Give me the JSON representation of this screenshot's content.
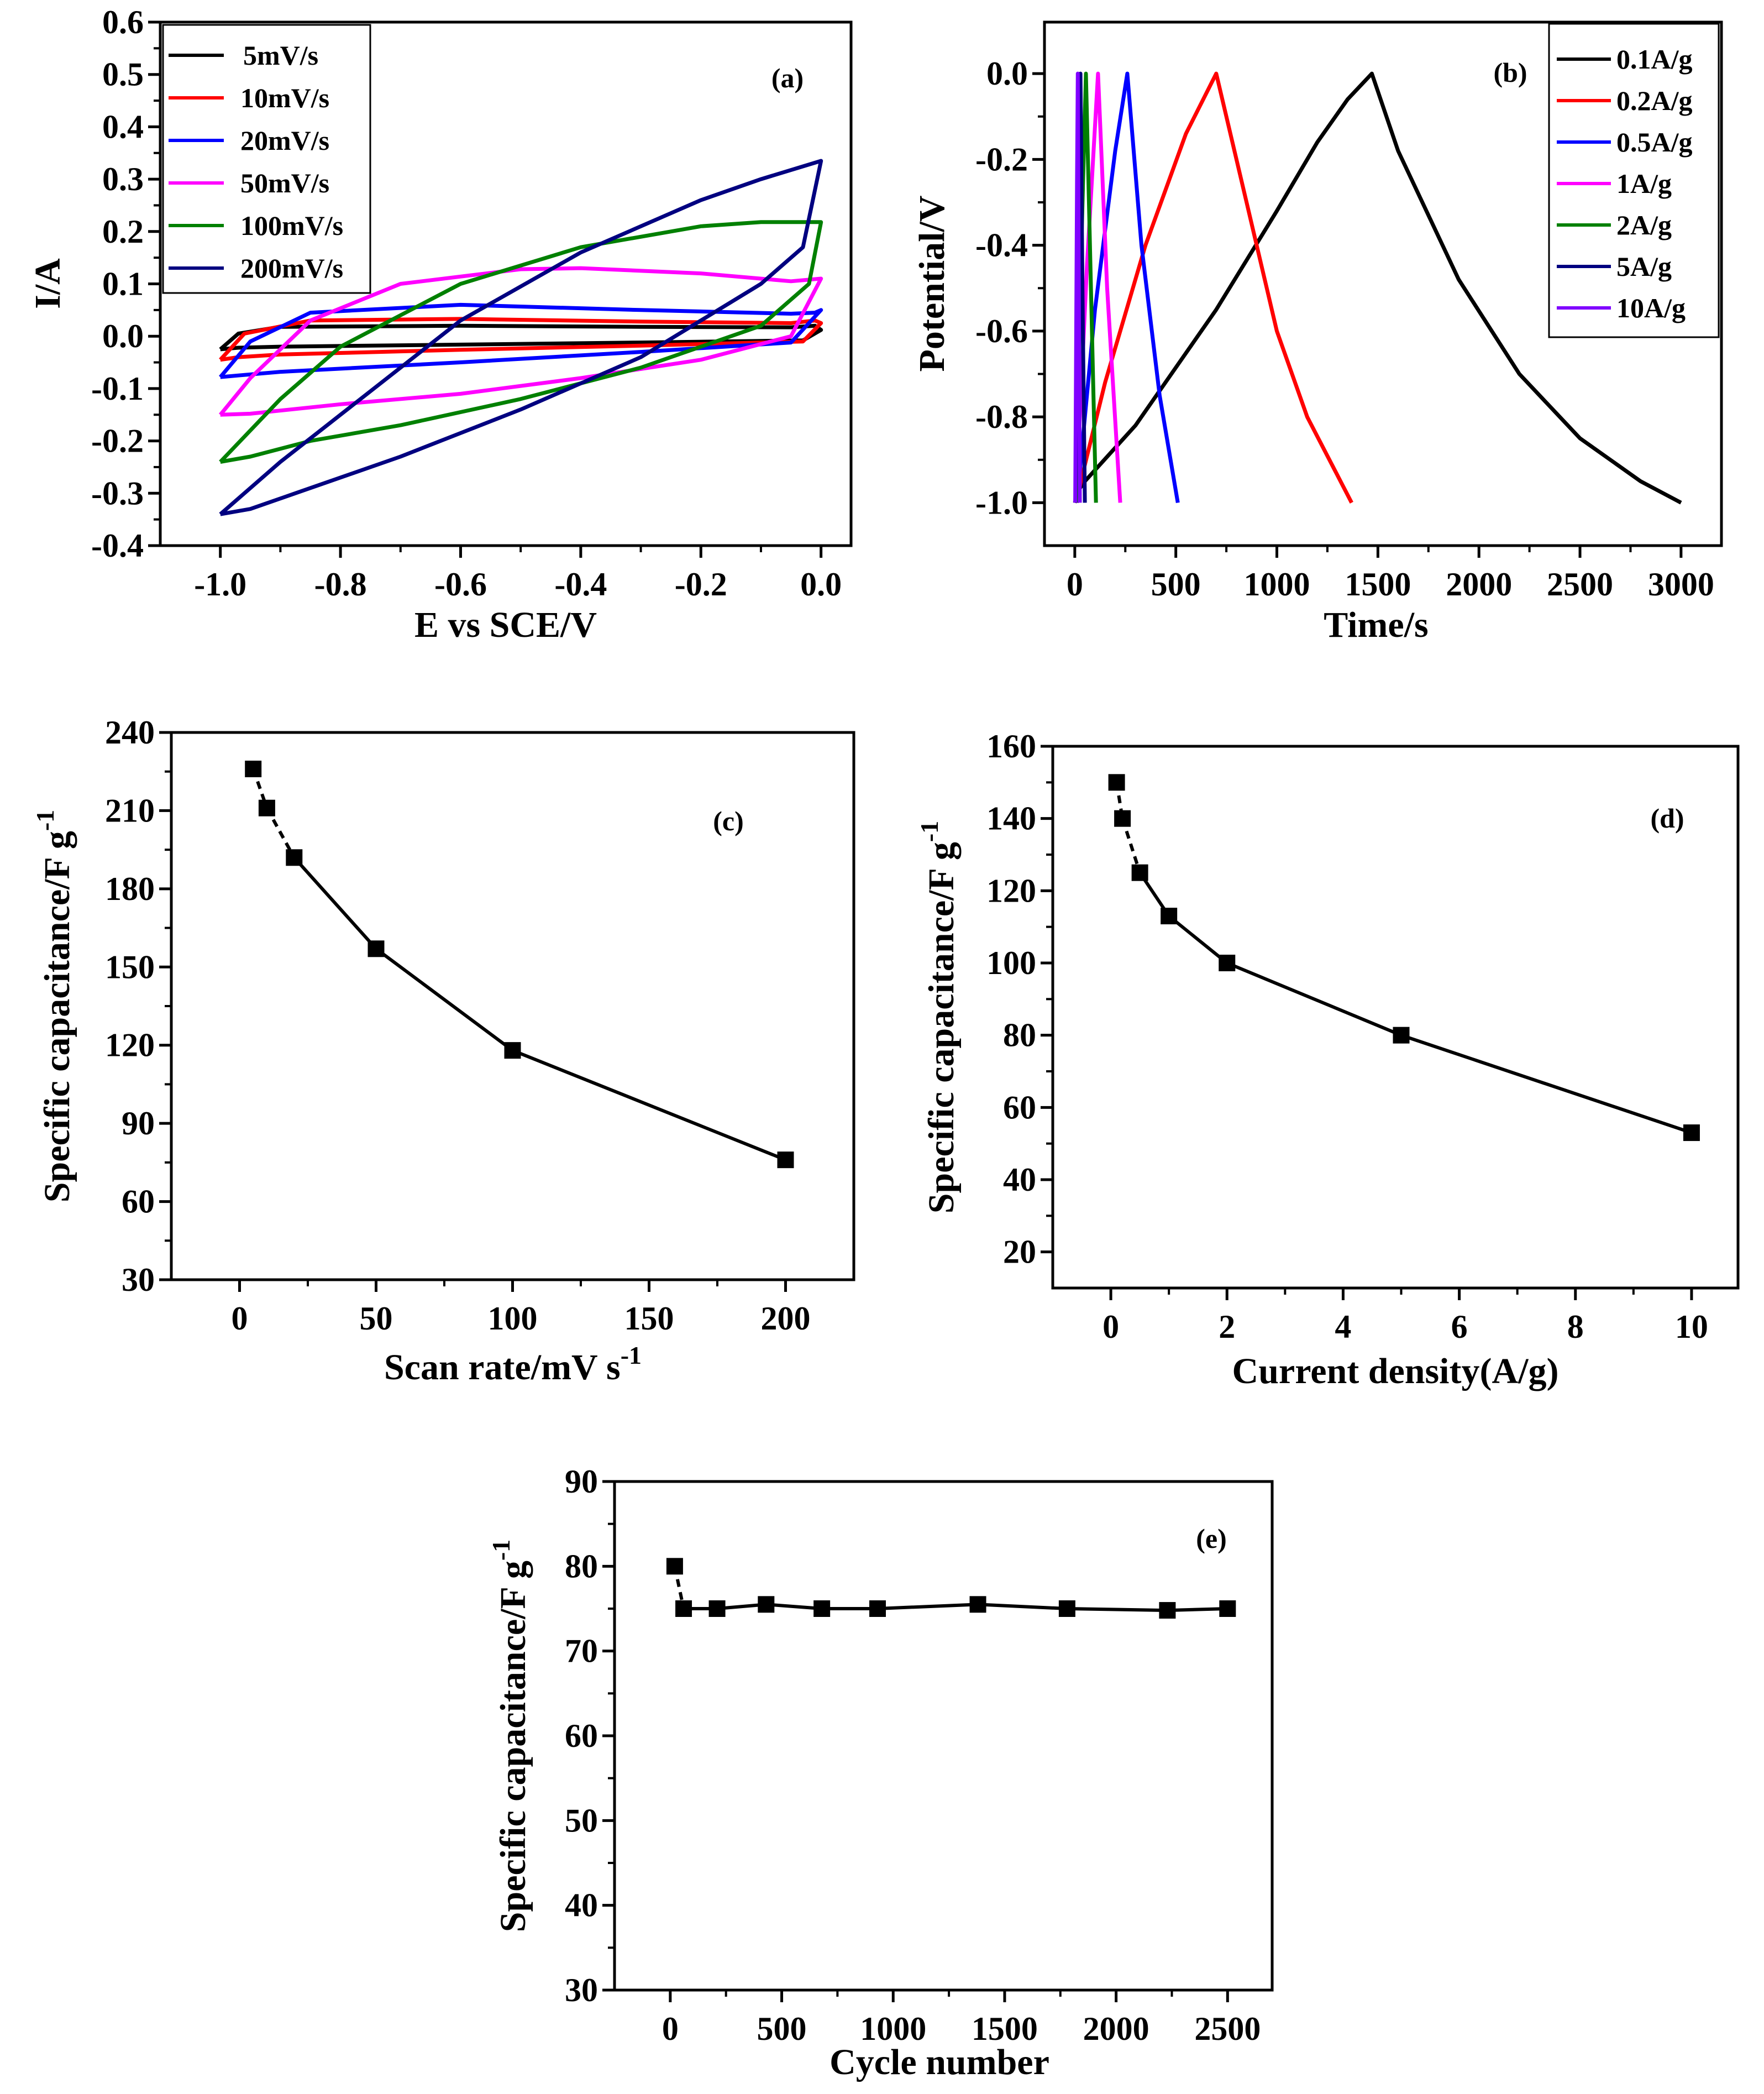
{
  "colors": {
    "black": "#000000",
    "red": "#ff0000",
    "blue": "#0000ff",
    "magenta": "#ff00ff",
    "green": "#008000",
    "navy": "#000080",
    "violet": "#8000ff"
  },
  "chart_data": [
    {
      "id": "a",
      "type": "line",
      "panel_label": "(a)",
      "xlabel": "E vs SCE/V",
      "ylabel": "I/A",
      "xlim": [
        -1.1,
        0.05
      ],
      "ylim": [
        -0.4,
        0.6
      ],
      "xticks": [
        -1.0,
        -0.8,
        -0.6,
        -0.4,
        -0.2,
        0.0
      ],
      "xtick_labels": [
        "-1.0",
        "-0.8",
        "-0.6",
        "-0.4",
        "-0.2",
        "0.0"
      ],
      "yticks": [
        -0.4,
        -0.3,
        -0.2,
        -0.1,
        0.0,
        0.1,
        0.2,
        0.3,
        0.4,
        0.5,
        0.6
      ],
      "ytick_labels": [
        "-0.4",
        "-0.3",
        "-0.2",
        "-0.1",
        "0.0",
        "0.1",
        "0.2",
        "0.3",
        "0.4",
        "0.5",
        "0.6"
      ],
      "legend_position": "top-left",
      "series": [
        {
          "name": "5mV/s",
          "color": "#000000",
          "x": [
            -1.0,
            -0.97,
            -0.9,
            -0.6,
            -0.3,
            -0.05,
            -0.01,
            0.0,
            -0.03,
            -0.3,
            -0.6,
            -0.9,
            -0.97,
            -1.0
          ],
          "y": [
            -0.025,
            0.005,
            0.018,
            0.02,
            0.018,
            0.017,
            0.02,
            0.012,
            -0.008,
            -0.012,
            -0.016,
            -0.02,
            -0.022,
            -0.025
          ]
        },
        {
          "name": "10mV/s",
          "color": "#ff0000",
          "x": [
            -1.0,
            -0.96,
            -0.85,
            -0.6,
            -0.3,
            -0.05,
            -0.01,
            0.0,
            -0.03,
            -0.3,
            -0.6,
            -0.9,
            -0.97,
            -1.0
          ],
          "y": [
            -0.045,
            0.005,
            0.03,
            0.033,
            0.028,
            0.025,
            0.03,
            0.025,
            -0.01,
            -0.018,
            -0.026,
            -0.035,
            -0.04,
            -0.045
          ]
        },
        {
          "name": "20mV/s",
          "color": "#0000ff",
          "x": [
            -1.0,
            -0.95,
            -0.85,
            -0.6,
            -0.3,
            -0.05,
            -0.01,
            0.0,
            -0.05,
            -0.3,
            -0.6,
            -0.9,
            -0.97,
            -1.0
          ],
          "y": [
            -0.078,
            -0.01,
            0.045,
            0.06,
            0.05,
            0.043,
            0.045,
            0.05,
            -0.012,
            -0.03,
            -0.05,
            -0.068,
            -0.075,
            -0.078
          ]
        },
        {
          "name": "50mV/s",
          "color": "#ff00ff",
          "x": [
            -1.0,
            -0.95,
            -0.85,
            -0.7,
            -0.5,
            -0.4,
            -0.2,
            -0.05,
            0.0,
            -0.05,
            -0.2,
            -0.4,
            -0.6,
            -0.8,
            -0.95,
            -1.0
          ],
          "y": [
            -0.15,
            -0.08,
            0.03,
            0.1,
            0.128,
            0.13,
            0.12,
            0.105,
            0.11,
            0.0,
            -0.045,
            -0.08,
            -0.11,
            -0.13,
            -0.148,
            -0.15
          ]
        },
        {
          "name": "100mV/s",
          "color": "#008000",
          "x": [
            -1.0,
            -0.9,
            -0.8,
            -0.6,
            -0.4,
            -0.2,
            -0.1,
            0.0,
            -0.02,
            -0.1,
            -0.3,
            -0.5,
            -0.7,
            -0.85,
            -0.95,
            -1.0
          ],
          "y": [
            -0.24,
            -0.12,
            -0.02,
            0.1,
            0.17,
            0.21,
            0.218,
            0.218,
            0.1,
            0.02,
            -0.06,
            -0.12,
            -0.17,
            -0.2,
            -0.23,
            -0.24
          ]
        },
        {
          "name": "200mV/s",
          "color": "#000080",
          "x": [
            -1.0,
            -0.9,
            -0.8,
            -0.6,
            -0.4,
            -0.2,
            -0.1,
            0.0,
            -0.03,
            -0.1,
            -0.3,
            -0.5,
            -0.7,
            -0.85,
            -0.95,
            -1.0
          ],
          "y": [
            -0.34,
            -0.24,
            -0.15,
            0.03,
            0.16,
            0.26,
            0.3,
            0.335,
            0.17,
            0.1,
            -0.04,
            -0.14,
            -0.23,
            -0.29,
            -0.33,
            -0.34
          ]
        }
      ]
    },
    {
      "id": "b",
      "type": "line",
      "panel_label": "(b)",
      "xlabel": "Time/s",
      "ylabel": "Potential/V",
      "xlim": [
        -150,
        3200
      ],
      "ylim": [
        -1.1,
        0.12
      ],
      "xticks": [
        0,
        500,
        1000,
        1500,
        2000,
        2500,
        3000
      ],
      "xtick_labels": [
        "0",
        "500",
        "1000",
        "1500",
        "2000",
        "2500",
        "3000"
      ],
      "yticks": [
        -1.0,
        -0.8,
        -0.6,
        -0.4,
        -0.2,
        0.0
      ],
      "ytick_labels": [
        "-1.0",
        "-0.8",
        "-0.6",
        "-0.4",
        "-0.2",
        "0.0"
      ],
      "legend_position": "top-right",
      "series": [
        {
          "name": "0.1A/g",
          "color": "#000000",
          "x": [
            0,
            20,
            50,
            300,
            700,
            1000,
            1200,
            1350,
            1470,
            1600,
            1900,
            2200,
            2500,
            2800,
            3000
          ],
          "y": [
            -1.0,
            -0.97,
            -0.95,
            -0.82,
            -0.55,
            -0.32,
            -0.16,
            -0.06,
            0.0,
            -0.18,
            -0.48,
            -0.7,
            -0.85,
            -0.95,
            -1.0
          ]
        },
        {
          "name": "0.2A/g",
          "color": "#ff0000",
          "x": [
            10,
            30,
            150,
            350,
            550,
            700,
            850,
            1000,
            1150,
            1370
          ],
          "y": [
            -1.0,
            -0.95,
            -0.72,
            -0.4,
            -0.14,
            0.0,
            -0.3,
            -0.6,
            -0.8,
            -1.0
          ]
        },
        {
          "name": "0.5A/g",
          "color": "#0000ff",
          "x": [
            10,
            20,
            100,
            200,
            260,
            330,
            420,
            510
          ],
          "y": [
            -1.0,
            -0.95,
            -0.55,
            -0.18,
            0.0,
            -0.4,
            -0.75,
            -1.0
          ]
        },
        {
          "name": "1A/g",
          "color": "#ff00ff",
          "x": [
            5,
            15,
            60,
            115,
            160,
            225
          ],
          "y": [
            -1.0,
            -0.9,
            -0.45,
            0.0,
            -0.5,
            -1.0
          ]
        },
        {
          "name": "2A/g",
          "color": "#008000",
          "x": [
            5,
            10,
            30,
            55,
            80,
            105
          ],
          "y": [
            -1.0,
            -0.9,
            -0.45,
            0.0,
            -0.5,
            -1.0
          ]
        },
        {
          "name": "5A/g",
          "color": "#000080",
          "x": [
            3,
            8,
            20,
            28,
            38,
            50
          ],
          "y": [
            -1.0,
            -0.8,
            -0.3,
            0.0,
            -0.5,
            -1.0
          ]
        },
        {
          "name": "10A/g",
          "color": "#8000ff",
          "x": [
            2,
            6,
            11,
            15,
            20,
            25
          ],
          "y": [
            -1.0,
            -0.7,
            -0.25,
            0.0,
            -0.5,
            -1.0
          ]
        }
      ]
    },
    {
      "id": "c",
      "type": "scatter",
      "panel_label": "(c)",
      "xlabel": "Scan rate/mV s",
      "xlabel_sup": "-1",
      "ylabel": "Specific capacitance/F g",
      "ylabel_sup": "-1",
      "xlim": [
        -25,
        225
      ],
      "ylim": [
        30,
        240
      ],
      "xticks": [
        0,
        50,
        100,
        150,
        200
      ],
      "xtick_labels": [
        "0",
        "50",
        "100",
        "150",
        "200"
      ],
      "yticks": [
        30,
        60,
        90,
        120,
        150,
        180,
        210,
        240
      ],
      "ytick_labels": [
        "30",
        "60",
        "90",
        "120",
        "150",
        "180",
        "210",
        "240"
      ],
      "x": [
        5,
        10,
        20,
        50,
        100,
        200
      ],
      "y": [
        226,
        211,
        192,
        157,
        118,
        76
      ],
      "dashed_segments": 2
    },
    {
      "id": "d",
      "type": "scatter",
      "panel_label": "(d)",
      "xlabel": "Current density(A/g)",
      "ylabel": "Specific capacitance/F g",
      "ylabel_sup": "-1",
      "xlim": [
        -1,
        10.8
      ],
      "ylim": [
        10,
        160
      ],
      "xticks": [
        0,
        2,
        4,
        6,
        8,
        10
      ],
      "xtick_labels": [
        "0",
        "2",
        "4",
        "6",
        "8",
        "10"
      ],
      "yticks": [
        20,
        40,
        60,
        80,
        100,
        120,
        140,
        160
      ],
      "ytick_labels": [
        "20",
        "40",
        "60",
        "80",
        "100",
        "120",
        "140",
        "160"
      ],
      "x": [
        0.1,
        0.2,
        0.5,
        1,
        2,
        5,
        10
      ],
      "y": [
        150,
        140,
        125,
        113,
        100,
        80,
        53
      ],
      "dashed_segments": 2
    },
    {
      "id": "e",
      "type": "scatter",
      "panel_label": "(e)",
      "xlabel": "Cycle number",
      "ylabel": "Specific capacitance/F g",
      "ylabel_sup": "-1",
      "xlim": [
        -250,
        2700
      ],
      "ylim": [
        30,
        90
      ],
      "xticks": [
        0,
        500,
        1000,
        1500,
        2000,
        2500
      ],
      "xtick_labels": [
        "0",
        "500",
        "1000",
        "1500",
        "2000",
        "2500"
      ],
      "yticks": [
        30,
        40,
        50,
        60,
        70,
        80,
        90
      ],
      "ytick_labels": [
        "30",
        "40",
        "50",
        "60",
        "70",
        "80",
        "90"
      ],
      "x": [
        20,
        60,
        210,
        430,
        680,
        930,
        1380,
        1780,
        2230,
        2500
      ],
      "y": [
        80,
        75,
        75,
        75.5,
        75,
        75,
        75.5,
        75,
        74.8,
        75
      ],
      "dashed_segments": 1
    }
  ]
}
